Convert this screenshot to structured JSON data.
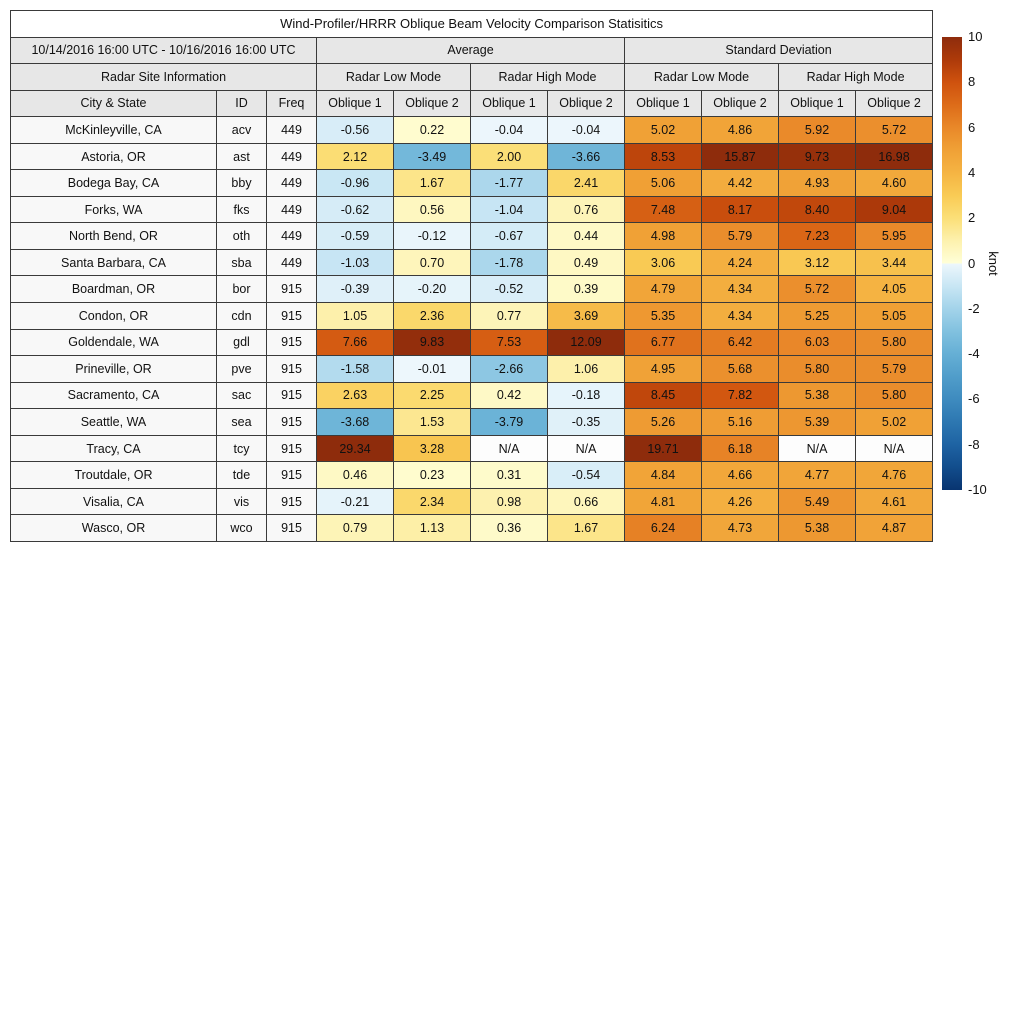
{
  "title": "Wind-Profiler/HRRR Oblique Beam Velocity Comparison Statisitics",
  "header": {
    "date_range": "10/14/2016 16:00 UTC - 10/16/2016 16:00 UTC",
    "avg_label": "Average",
    "std_label": "Standard Deviation",
    "site_info_label": "Radar Site Information",
    "mode_headers": [
      "Radar Low Mode",
      "Radar High Mode",
      "Radar Low Mode",
      "Radar High Mode"
    ],
    "col_headers": [
      "City & State",
      "ID",
      "Freq",
      "Oblique 1",
      "Oblique 2",
      "Oblique 1",
      "Oblique 2",
      "Oblique 1",
      "Oblique 2",
      "Oblique 1",
      "Oblique 2"
    ]
  },
  "na_text": "N/A",
  "colorbar": {
    "label": "knot",
    "min": -10,
    "max": 10,
    "ticks": [
      10,
      8,
      6,
      4,
      2,
      0,
      -2,
      -4,
      -6,
      -8,
      -10
    ]
  },
  "colormap": {
    "positive_stops": [
      "#ffffd8",
      "#fdf1ae",
      "#fbdf78",
      "#f9cb55",
      "#f5b443",
      "#f0a136",
      "#e98829",
      "#dd6c19",
      "#cf520e",
      "#ad3a0a",
      "#8e2c0c"
    ],
    "negative_stops": [
      "#edf7fc",
      "#c8e6f4",
      "#a3d3ea",
      "#81c1df",
      "#65afd5",
      "#509dca",
      "#3e8bbf",
      "#2d77b1",
      "#1e63a3",
      "#124d8c",
      "#083470"
    ],
    "na_color": "#fdfdfd"
  },
  "chart_data": {
    "type": "heatmap",
    "title": "Wind-Profiler/HRRR Oblique Beam Velocity Comparison Statisitics",
    "unit": "knot",
    "colorbar_range": [
      -10,
      10
    ],
    "column_groups": [
      {
        "group": "Average",
        "mode": "Radar Low Mode",
        "beams": [
          "Oblique 1",
          "Oblique 2"
        ]
      },
      {
        "group": "Average",
        "mode": "Radar High Mode",
        "beams": [
          "Oblique 1",
          "Oblique 2"
        ]
      },
      {
        "group": "Standard Deviation",
        "mode": "Radar Low Mode",
        "beams": [
          "Oblique 1",
          "Oblique 2"
        ]
      },
      {
        "group": "Standard Deviation",
        "mode": "Radar High Mode",
        "beams": [
          "Oblique 1",
          "Oblique 2"
        ]
      }
    ],
    "rows": [
      {
        "city": "McKinleyville, CA",
        "id": "acv",
        "freq": "449",
        "values": [
          -0.56,
          0.22,
          -0.04,
          -0.04,
          5.02,
          4.86,
          5.92,
          5.72
        ]
      },
      {
        "city": "Astoria, OR",
        "id": "ast",
        "freq": "449",
        "values": [
          2.12,
          -3.49,
          2.0,
          -3.66,
          8.53,
          15.87,
          9.73,
          16.98
        ]
      },
      {
        "city": "Bodega Bay, CA",
        "id": "bby",
        "freq": "449",
        "values": [
          -0.96,
          1.67,
          -1.77,
          2.41,
          5.06,
          4.42,
          4.93,
          4.6
        ]
      },
      {
        "city": "Forks, WA",
        "id": "fks",
        "freq": "449",
        "values": [
          -0.62,
          0.56,
          -1.04,
          0.76,
          7.48,
          8.17,
          8.4,
          9.04
        ]
      },
      {
        "city": "North Bend, OR",
        "id": "oth",
        "freq": "449",
        "values": [
          -0.59,
          -0.12,
          -0.67,
          0.44,
          4.98,
          5.79,
          7.23,
          5.95
        ]
      },
      {
        "city": "Santa Barbara, CA",
        "id": "sba",
        "freq": "449",
        "values": [
          -1.03,
          0.7,
          -1.78,
          0.49,
          3.06,
          4.24,
          3.12,
          3.44
        ]
      },
      {
        "city": "Boardman, OR",
        "id": "bor",
        "freq": "915",
        "values": [
          -0.39,
          -0.2,
          -0.52,
          0.39,
          4.79,
          4.34,
          5.72,
          4.05
        ]
      },
      {
        "city": "Condon, OR",
        "id": "cdn",
        "freq": "915",
        "values": [
          1.05,
          2.36,
          0.77,
          3.69,
          5.35,
          4.34,
          5.25,
          5.05
        ]
      },
      {
        "city": "Goldendale, WA",
        "id": "gdl",
        "freq": "915",
        "values": [
          7.66,
          9.83,
          7.53,
          12.09,
          6.77,
          6.42,
          6.03,
          5.8
        ]
      },
      {
        "city": "Prineville, OR",
        "id": "pve",
        "freq": "915",
        "values": [
          -1.58,
          -0.01,
          -2.66,
          1.06,
          4.95,
          5.68,
          5.8,
          5.79
        ]
      },
      {
        "city": "Sacramento, CA",
        "id": "sac",
        "freq": "915",
        "values": [
          2.63,
          2.25,
          0.42,
          -0.18,
          8.45,
          7.82,
          5.38,
          5.8
        ]
      },
      {
        "city": "Seattle, WA",
        "id": "sea",
        "freq": "915",
        "values": [
          -3.68,
          1.53,
          -3.79,
          -0.35,
          5.26,
          5.16,
          5.39,
          5.02
        ]
      },
      {
        "city": "Tracy, CA",
        "id": "tcy",
        "freq": "915",
        "values": [
          29.34,
          3.28,
          null,
          null,
          19.71,
          6.18,
          null,
          null
        ]
      },
      {
        "city": "Troutdale, OR",
        "id": "tde",
        "freq": "915",
        "values": [
          0.46,
          0.23,
          0.31,
          -0.54,
          4.84,
          4.66,
          4.77,
          4.76
        ]
      },
      {
        "city": "Visalia, CA",
        "id": "vis",
        "freq": "915",
        "values": [
          -0.21,
          2.34,
          0.98,
          0.66,
          4.81,
          4.26,
          5.49,
          4.61
        ]
      },
      {
        "city": "Wasco, OR",
        "id": "wco",
        "freq": "915",
        "values": [
          0.79,
          1.13,
          0.36,
          1.67,
          6.24,
          4.73,
          5.38,
          4.87
        ]
      }
    ]
  }
}
